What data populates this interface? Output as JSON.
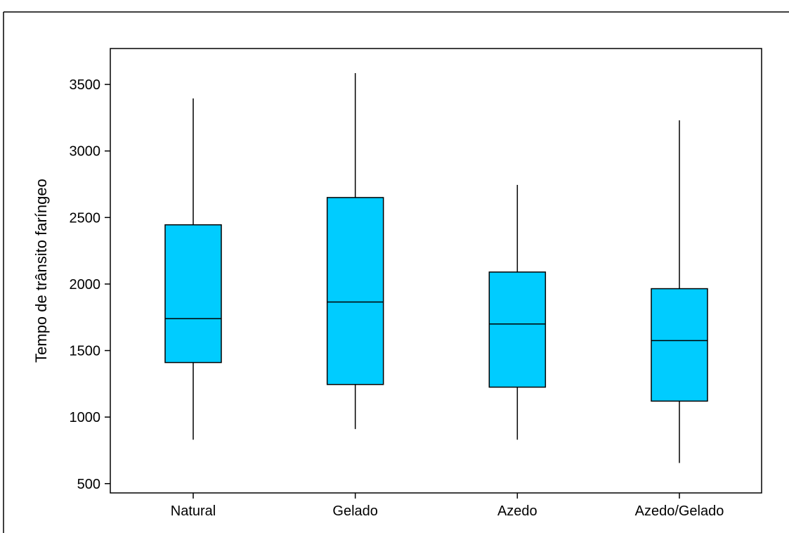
{
  "chart_data": {
    "type": "box",
    "title": "",
    "xlabel": "",
    "ylabel": "Tempo de trânsito faríngeo",
    "ylim": [
      430,
      3770
    ],
    "yticks": [
      500,
      1000,
      1500,
      2000,
      2500,
      3000,
      3500
    ],
    "categories": [
      "Natural",
      "Gelado",
      "Azedo",
      "Azedo/Gelado"
    ],
    "boxes": [
      {
        "category": "Natural",
        "min": 830,
        "q1": 1410,
        "median": 1740,
        "q3": 2445,
        "max": 3395
      },
      {
        "category": "Gelado",
        "min": 910,
        "q1": 1245,
        "median": 1865,
        "q3": 2650,
        "max": 3585
      },
      {
        "category": "Azedo",
        "min": 830,
        "q1": 1225,
        "median": 1700,
        "q3": 2090,
        "max": 2745
      },
      {
        "category": "Azedo/Gelado",
        "min": 655,
        "q1": 1120,
        "median": 1575,
        "q3": 1965,
        "max": 3230
      }
    ],
    "box_color": "#00ccff",
    "line_color": "#000000",
    "grid": false,
    "legend": "none"
  }
}
